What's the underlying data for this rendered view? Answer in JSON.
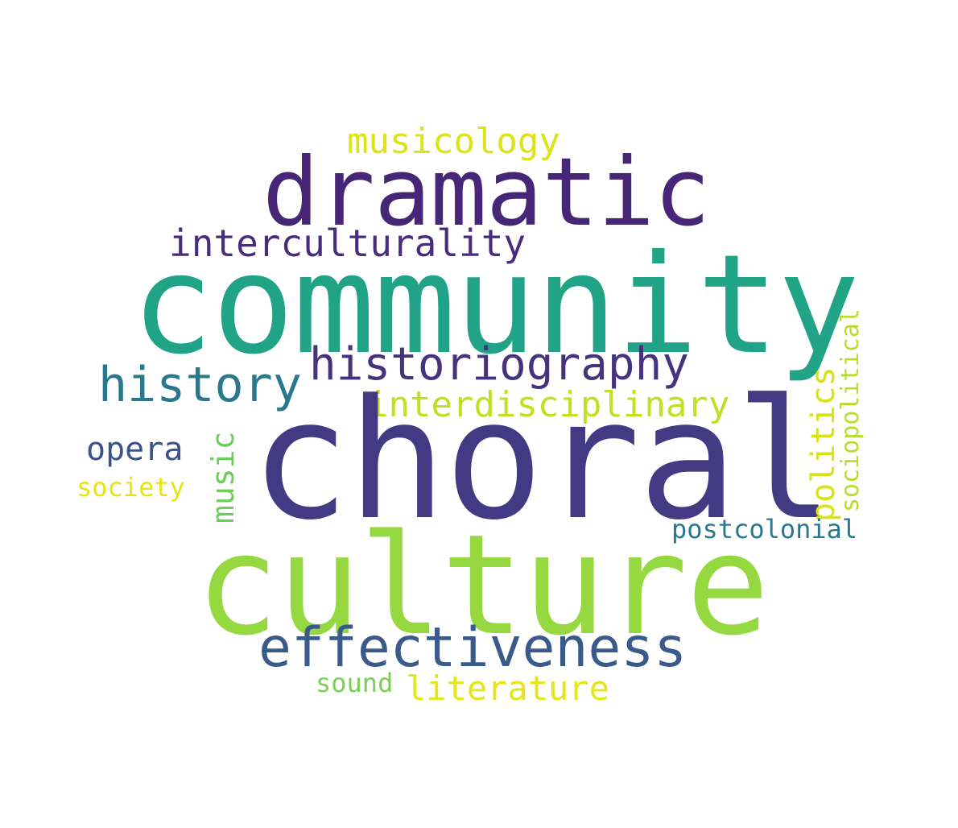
{
  "words": [
    {
      "id": "dramatic",
      "text": "dramatic",
      "color": "#482677",
      "orientation": "horizontal"
    },
    {
      "id": "musicology",
      "text": "musicology",
      "color": "#DCE319",
      "orientation": "horizontal"
    },
    {
      "id": "interculturality",
      "text": "interculturality",
      "color": "#472D7B",
      "orientation": "horizontal"
    },
    {
      "id": "community",
      "text": "community",
      "color": "#20A386",
      "orientation": "horizontal"
    },
    {
      "id": "historiography",
      "text": "historiography",
      "color": "#45337D",
      "orientation": "horizontal"
    },
    {
      "id": "history",
      "text": "history",
      "color": "#2A788E",
      "orientation": "horizontal"
    },
    {
      "id": "interdisciplinary",
      "text": "interdisciplinary",
      "color": "#C2DF23",
      "orientation": "horizontal"
    },
    {
      "id": "choral",
      "text": "choral",
      "color": "#443A83",
      "orientation": "horizontal"
    },
    {
      "id": "opera",
      "text": "opera",
      "color": "#3B528B",
      "orientation": "horizontal"
    },
    {
      "id": "society",
      "text": "society",
      "color": "#E4E419",
      "orientation": "horizontal"
    },
    {
      "id": "music",
      "text": "music",
      "color": "#6CCD5A",
      "orientation": "vertical"
    },
    {
      "id": "politics",
      "text": "politics",
      "color": "#D8E219",
      "orientation": "vertical"
    },
    {
      "id": "sociopolitical",
      "text": "sociopolitical",
      "color": "#B5DE2B",
      "orientation": "vertical"
    },
    {
      "id": "postcolonial",
      "text": "postcolonial",
      "color": "#2A788E",
      "orientation": "horizontal"
    },
    {
      "id": "culture",
      "text": "culture",
      "color": "#95D840",
      "orientation": "horizontal"
    },
    {
      "id": "effectiveness",
      "text": "effectiveness",
      "color": "#3A5A8C",
      "orientation": "horizontal"
    },
    {
      "id": "sound",
      "text": "sound",
      "color": "#7AD151",
      "orientation": "horizontal"
    },
    {
      "id": "literature",
      "text": "literature",
      "color": "#E7E419",
      "orientation": "horizontal"
    }
  ],
  "background_color": "#FFFFFF"
}
